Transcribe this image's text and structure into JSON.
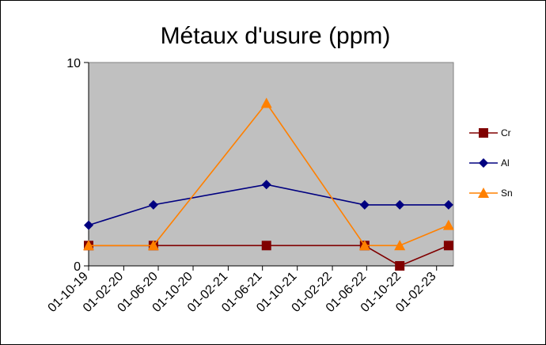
{
  "chart_data": {
    "type": "line",
    "title": "Métaux d'usure (ppm)",
    "xlabel": "",
    "ylabel": "",
    "ylim": [
      0,
      10
    ],
    "y_ticks": [
      0,
      10
    ],
    "grid": false,
    "legend_position": "right",
    "x_ticks": [
      "01-10-19",
      "01-02-20",
      "01-06-20",
      "01-10-20",
      "01-02-21",
      "01-06-21",
      "01-10-21",
      "01-02-22",
      "01-06-22",
      "01-10-22",
      "01-02-23"
    ],
    "x_range": [
      "2019-10-01",
      "2023-04-01"
    ],
    "background": "#c0c0c0",
    "series": [
      {
        "name": "Cr",
        "color": "#800000",
        "marker": "square",
        "points": [
          {
            "x": "2019-10-01",
            "y": 1
          },
          {
            "x": "2020-05-15",
            "y": 1
          },
          {
            "x": "2021-06-15",
            "y": 1
          },
          {
            "x": "2022-05-25",
            "y": 1
          },
          {
            "x": "2022-09-25",
            "y": 0
          },
          {
            "x": "2023-03-15",
            "y": 1
          }
        ]
      },
      {
        "name": "Al",
        "color": "#000080",
        "marker": "diamond",
        "points": [
          {
            "x": "2019-10-01",
            "y": 2
          },
          {
            "x": "2020-05-15",
            "y": 3
          },
          {
            "x": "2021-06-15",
            "y": 4
          },
          {
            "x": "2022-05-25",
            "y": 3
          },
          {
            "x": "2022-09-25",
            "y": 3
          },
          {
            "x": "2023-03-15",
            "y": 3
          }
        ]
      },
      {
        "name": "Sn",
        "color": "#ff8000",
        "marker": "triangle",
        "points": [
          {
            "x": "2019-10-01",
            "y": 1
          },
          {
            "x": "2020-05-15",
            "y": 1
          },
          {
            "x": "2021-06-15",
            "y": 8
          },
          {
            "x": "2022-05-25",
            "y": 1
          },
          {
            "x": "2022-09-25",
            "y": 1
          },
          {
            "x": "2023-03-15",
            "y": 2
          }
        ]
      }
    ]
  }
}
